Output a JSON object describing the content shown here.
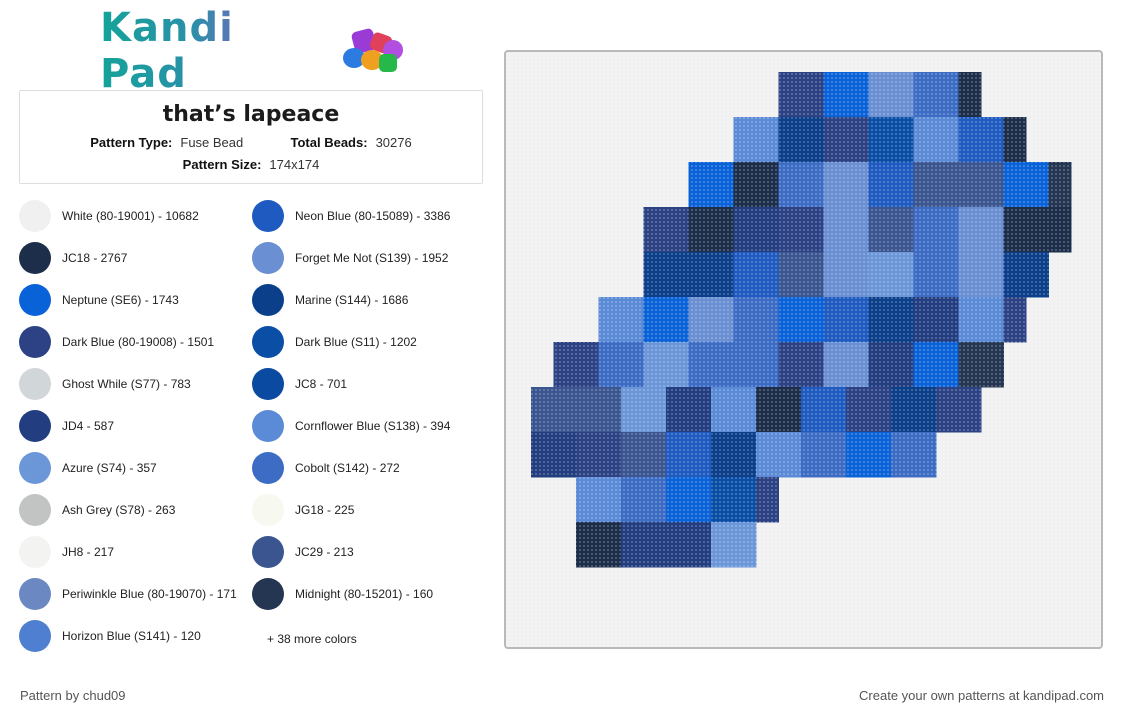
{
  "logo": {
    "text": "Kandi Pad"
  },
  "pattern": {
    "title": "that’s lapeace",
    "type_label": "Pattern Type:",
    "type_value": "Fuse Bead",
    "beads_label": "Total Beads:",
    "beads_value": "30276",
    "size_label": "Pattern Size:",
    "size_value": "174x174"
  },
  "colors_left": [
    {
      "label": "White (80-19001) - 10682",
      "hex": "#f0f0f0"
    },
    {
      "label": "JC18 - 2767",
      "hex": "#1c2e4a"
    },
    {
      "label": "Neptune (SE6) - 1743",
      "hex": "#0a62d8"
    },
    {
      "label": "Dark Blue (80-19008) - 1501",
      "hex": "#2c4285"
    },
    {
      "label": "Ghost While (S77) - 783",
      "hex": "#d1d6d9"
    },
    {
      "label": "JD4 - 587",
      "hex": "#233e80"
    },
    {
      "label": "Azure (S74) - 357",
      "hex": "#6b96d8"
    },
    {
      "label": "Ash Grey (S78) - 263",
      "hex": "#c2c4c4"
    },
    {
      "label": "JH8 - 217",
      "hex": "#f3f3f1"
    },
    {
      "label": "Periwinkle Blue (80-19070) - 171",
      "hex": "#6c88c2"
    },
    {
      "label": "Horizon Blue (S141) - 120",
      "hex": "#4f7fd0"
    }
  ],
  "colors_right": [
    {
      "label": "Neon Blue (80-15089) - 3386",
      "hex": "#1f5ac0"
    },
    {
      "label": "Forget Me Not (S139) - 1952",
      "hex": "#6a8fd2"
    },
    {
      "label": "Marine (S144) - 1686",
      "hex": "#0c3f8a"
    },
    {
      "label": "Dark Blue (S11) - 1202",
      "hex": "#0b4ea6"
    },
    {
      "label": "JC8 - 701",
      "hex": "#0a4aa0"
    },
    {
      "label": "Cornflower Blue (S138) - 394",
      "hex": "#5b8bd6"
    },
    {
      "label": "Cobolt (S142) - 272",
      "hex": "#3d6cc4"
    },
    {
      "label": "JG18 - 225",
      "hex": "#f7f8f0"
    },
    {
      "label": "JC29 - 213",
      "hex": "#3b5590"
    },
    {
      "label": "Midnight (80-15201) - 160",
      "hex": "#243651"
    }
  ],
  "more_colors": "+ 38 more colors",
  "footer": {
    "left": "Pattern by chud09",
    "right": "Create your own patterns at kandipad.com"
  }
}
